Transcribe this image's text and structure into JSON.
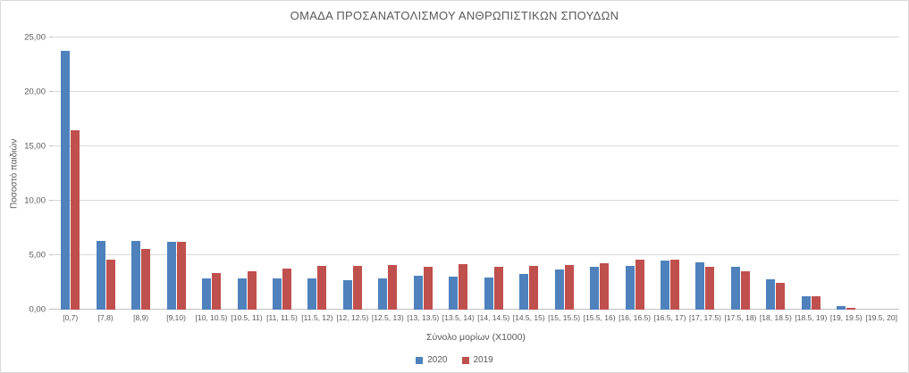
{
  "chart_data": {
    "type": "bar",
    "title": "ΟΜΑΔΑ ΠΡΟΣΑΝΑΤΟΛΙΣΜΟΥ ΑΝΘΡΩΠΙΣΤΙΚΩΝ ΣΠΟΥΔΩΝ",
    "xlabel": "Σύνολο μορίων (X1000)",
    "ylabel": "Ποσοστό παιδιών",
    "ylim": [
      0,
      25
    ],
    "y_tick_values": [
      0,
      5,
      10,
      15,
      20,
      25
    ],
    "y_tick_labels": [
      "0,00",
      "5,00",
      "10,00",
      "15,00",
      "20,00",
      "25,00"
    ],
    "grid": "horizontal",
    "legend_position": "bottom",
    "categories": [
      "[0,7)",
      "[7,8)",
      "[8,9)",
      "[9,10)",
      "[10, 10.5)",
      "[10.5, 11)",
      "[11, 11.5)",
      "[11.5, 12)",
      "[12, 12.5)",
      "[12.5, 13)",
      "[13, 13.5)",
      "[13.5, 14)",
      "[14, 14.5)",
      "[14.5, 15)",
      "[15, 15.5)",
      "[15.5, 16)",
      "[16, 16.5)",
      "[16.5, 17)",
      "[17, 17.5)",
      "[17.5, 18)",
      "[18, 18.5)",
      "[18.5, 19)",
      "[19, 19.5)",
      "[19.5, 20]"
    ],
    "series": [
      {
        "name": "2020",
        "color": "#4F81BD",
        "values": [
          23.8,
          6.3,
          6.3,
          6.2,
          2.9,
          2.9,
          2.9,
          2.9,
          2.7,
          2.9,
          3.1,
          3.0,
          2.95,
          3.3,
          3.7,
          3.95,
          4.0,
          4.5,
          4.35,
          3.95,
          2.8,
          1.2,
          0.35,
          0
        ]
      },
      {
        "name": "2019",
        "color": "#C0504D",
        "values": [
          16.5,
          4.6,
          5.6,
          6.2,
          3.4,
          3.5,
          3.8,
          4.0,
          4.0,
          4.1,
          3.9,
          4.2,
          3.9,
          4.0,
          4.1,
          4.3,
          4.6,
          4.6,
          3.95,
          3.55,
          2.5,
          1.2,
          0.2,
          0
        ]
      }
    ]
  },
  "colors": {
    "gridline": "#d9d9d9",
    "axis_line": "#bfbfbf",
    "text": "#595959",
    "background": "#ffffff"
  }
}
